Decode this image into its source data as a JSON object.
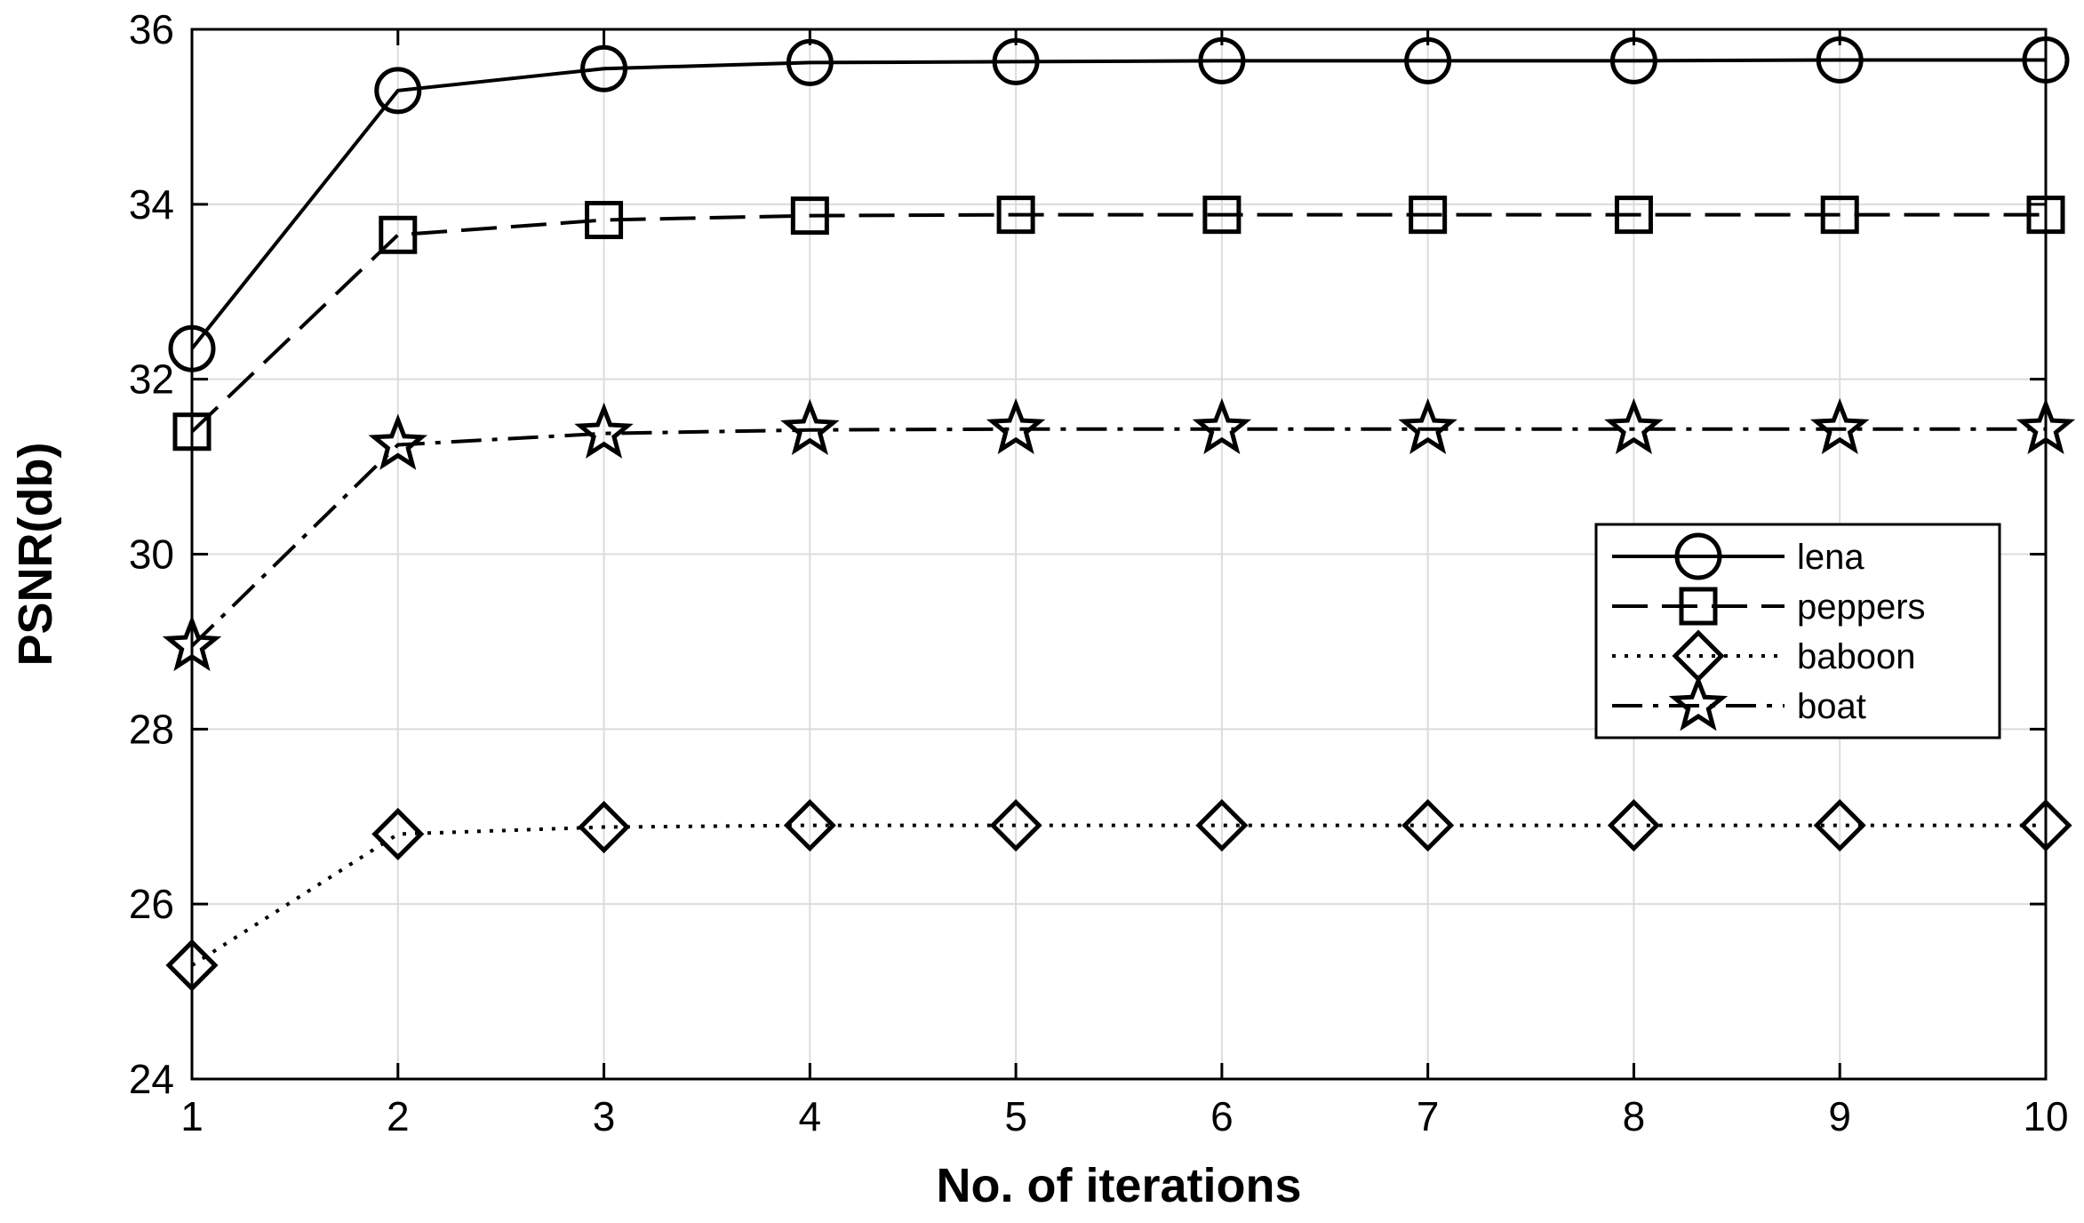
{
  "chart_data": {
    "type": "line",
    "title": "",
    "xlabel": "No. of iterations",
    "ylabel": "PSNR(db)",
    "xlim": [
      1,
      10
    ],
    "ylim": [
      24,
      36
    ],
    "xticks": [
      "1",
      "2",
      "3",
      "4",
      "5",
      "6",
      "7",
      "8",
      "9",
      "10"
    ],
    "yticks": [
      "24",
      "26",
      "28",
      "30",
      "32",
      "34",
      "36"
    ],
    "grid": true,
    "legend_position": "right",
    "x": [
      1,
      2,
      3,
      4,
      5,
      6,
      7,
      8,
      9,
      10
    ],
    "series": [
      {
        "name": "lena",
        "marker": "circle",
        "line_style": "solid",
        "values": [
          32.35,
          35.3,
          35.55,
          35.62,
          35.63,
          35.64,
          35.64,
          35.64,
          35.65,
          35.65
        ]
      },
      {
        "name": "peppers",
        "marker": "square",
        "line_style": "dashed",
        "values": [
          31.4,
          33.65,
          33.82,
          33.87,
          33.88,
          33.88,
          33.88,
          33.88,
          33.88,
          33.88
        ]
      },
      {
        "name": "baboon",
        "marker": "diamond",
        "line_style": "dotted",
        "values": [
          25.3,
          26.8,
          26.88,
          26.9,
          26.9,
          26.9,
          26.9,
          26.9,
          26.9,
          26.9
        ]
      },
      {
        "name": "boat",
        "marker": "star",
        "line_style": "dashdot",
        "values": [
          28.95,
          31.25,
          31.38,
          31.42,
          31.43,
          31.43,
          31.43,
          31.43,
          31.43,
          31.43
        ]
      }
    ],
    "colors": {
      "line": "#000000",
      "grid": "#dcdcdc",
      "background": "#ffffff"
    }
  }
}
